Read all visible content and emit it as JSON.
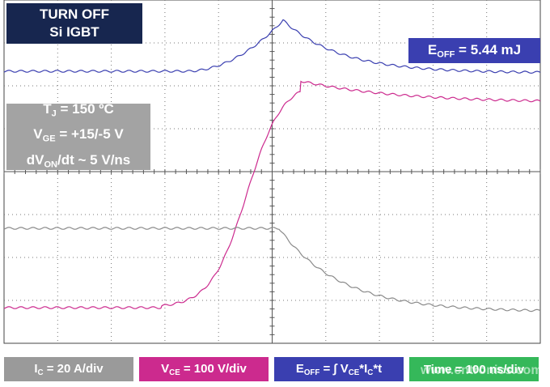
{
  "title_box": [
    [
      {
        "t": "TURN OFF"
      }
    ],
    [
      {
        "t": "Si IGBT"
      }
    ]
  ],
  "conditions_box": [
    [
      {
        "t": "T"
      },
      {
        "sub": "J"
      },
      {
        "t": " = 150 ºC"
      }
    ],
    [
      {
        "t": "V"
      },
      {
        "sub": "GE"
      },
      {
        "t": " = +15/-5 V"
      }
    ],
    [
      {
        "t": "dV"
      },
      {
        "sub": "ON"
      },
      {
        "t": "/dt ~ 5 V/ns"
      }
    ]
  ],
  "energy_box": [
    [
      {
        "t": "E"
      },
      {
        "sub": "OFF"
      },
      {
        "t": " = 5.44 mJ"
      }
    ]
  ],
  "legend": [
    {
      "color": "#9a9a9a",
      "segments": [
        {
          "t": "I"
        },
        {
          "sub": "C"
        },
        {
          "t": " = 20 A/div"
        }
      ]
    },
    {
      "color": "#cc2a8e",
      "segments": [
        {
          "t": "V"
        },
        {
          "sub": "CE"
        },
        {
          "t": " = 100 V/div"
        }
      ]
    },
    {
      "color": "#3a3fb0",
      "segments": [
        {
          "t": "E"
        },
        {
          "sub": "OFF"
        },
        {
          "t": " = ∫ V"
        },
        {
          "sub": "CE"
        },
        {
          "t": "*I"
        },
        {
          "sub": "C"
        },
        {
          "t": "*t"
        }
      ]
    },
    {
      "color": "#35b85a",
      "segments": [
        {
          "t": "Time = 100 ns/div"
        }
      ]
    }
  ],
  "watermark": "www.cntronics.com"
}
